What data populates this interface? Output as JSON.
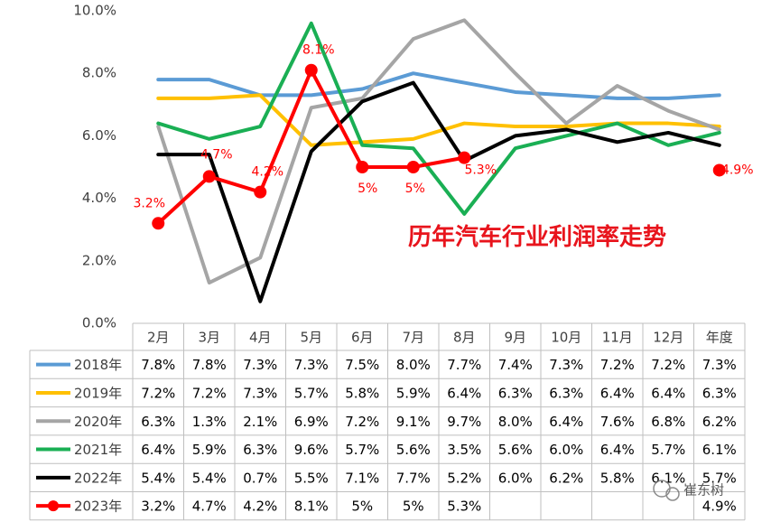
{
  "chart_data": {
    "type": "line",
    "annotation": "历年汽车行业利润率走势",
    "watermark": "崔东树",
    "categories": [
      "2月",
      "3月",
      "4月",
      "5月",
      "6月",
      "7月",
      "8月",
      "9月",
      "10月",
      "11月",
      "12月",
      "年度"
    ],
    "ylim": [
      0,
      10
    ],
    "yticks": [
      {
        "value": 0,
        "label": "0.0%"
      },
      {
        "value": 2,
        "label": "2.0%"
      },
      {
        "value": 4,
        "label": "4.0%"
      },
      {
        "value": 6,
        "label": "6.0%"
      },
      {
        "value": 8,
        "label": "8.0%"
      },
      {
        "value": 10,
        "label": "10.0%"
      }
    ],
    "series": [
      {
        "name": "2018年",
        "color": "#5b9bd5",
        "values": [
          7.8,
          7.8,
          7.3,
          7.3,
          7.5,
          8.0,
          7.7,
          7.4,
          7.3,
          7.2,
          7.2,
          7.3
        ],
        "value_labels": [
          "7.8%",
          "7.8%",
          "7.3%",
          "7.3%",
          "7.5%",
          "8.0%",
          "7.7%",
          "7.4%",
          "7.3%",
          "7.2%",
          "7.2%",
          "7.3%"
        ]
      },
      {
        "name": "2019年",
        "color": "#ffc000",
        "values": [
          7.2,
          7.2,
          7.3,
          5.7,
          5.8,
          5.9,
          6.4,
          6.3,
          6.3,
          6.4,
          6.4,
          6.3
        ],
        "value_labels": [
          "7.2%",
          "7.2%",
          "7.3%",
          "5.7%",
          "5.8%",
          "5.9%",
          "6.4%",
          "6.3%",
          "6.3%",
          "6.4%",
          "6.4%",
          "6.3%"
        ]
      },
      {
        "name": "2020年",
        "color": "#a5a5a5",
        "values": [
          6.3,
          1.3,
          2.1,
          6.9,
          7.2,
          9.1,
          9.7,
          8.0,
          6.4,
          7.6,
          6.8,
          6.2
        ],
        "value_labels": [
          "6.3%",
          "1.3%",
          "2.1%",
          "6.9%",
          "7.2%",
          "9.1%",
          "9.7%",
          "8.0%",
          "6.4%",
          "7.6%",
          "6.8%",
          "6.2%"
        ]
      },
      {
        "name": "2021年",
        "color": "#1aaf54",
        "values": [
          6.4,
          5.9,
          6.3,
          9.6,
          5.7,
          5.6,
          3.5,
          5.6,
          6.0,
          6.4,
          5.7,
          6.1
        ],
        "value_labels": [
          "6.4%",
          "5.9%",
          "6.3%",
          "9.6%",
          "5.7%",
          "5.6%",
          "3.5%",
          "5.6%",
          "6.0%",
          "6.4%",
          "5.7%",
          "6.1%"
        ]
      },
      {
        "name": "2022年",
        "color": "#000000",
        "values": [
          5.4,
          5.4,
          0.7,
          5.5,
          7.1,
          7.7,
          5.2,
          6.0,
          6.2,
          5.8,
          6.1,
          5.7
        ],
        "value_labels": [
          "5.4%",
          "5.4%",
          "0.7%",
          "5.5%",
          "7.1%",
          "7.7%",
          "5.2%",
          "6.0%",
          "6.2%",
          "5.8%",
          "6.1%",
          "5.7%"
        ]
      },
      {
        "name": "2023年",
        "color": "#ff0000",
        "markers": true,
        "data_labels": true,
        "values": [
          3.2,
          4.7,
          4.2,
          8.1,
          5,
          5,
          5.3,
          null,
          null,
          null,
          null,
          4.9
        ],
        "value_labels": [
          "3.2%",
          "4.7%",
          "4.2%",
          "8.1%",
          "5%",
          "5%",
          "5.3%",
          null,
          null,
          null,
          null,
          "4.9%"
        ]
      }
    ]
  }
}
